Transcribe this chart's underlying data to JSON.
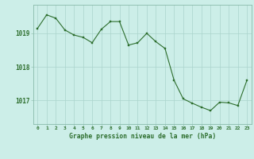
{
  "x": [
    0,
    1,
    2,
    3,
    4,
    5,
    6,
    7,
    8,
    9,
    10,
    11,
    12,
    13,
    14,
    15,
    16,
    17,
    18,
    19,
    20,
    21,
    22,
    23
  ],
  "y": [
    1019.15,
    1019.55,
    1019.45,
    1019.1,
    1018.95,
    1018.88,
    1018.72,
    1019.12,
    1019.35,
    1019.35,
    1018.65,
    1018.72,
    1019.0,
    1018.75,
    1018.55,
    1017.6,
    1017.05,
    1016.92,
    1016.8,
    1016.7,
    1016.95,
    1016.93,
    1016.85,
    1017.6
  ],
  "line_color": "#2d6e2d",
  "marker_color": "#2d6e2d",
  "bg_color": "#cceee8",
  "grid_color": "#aad4cc",
  "axis_label_color": "#2d6e2d",
  "xlabel": "Graphe pression niveau de la mer (hPa)",
  "yticks": [
    1017,
    1018,
    1019
  ],
  "ylim": [
    1016.3,
    1019.85
  ],
  "xlim": [
    -0.5,
    23.5
  ],
  "xtick_labels": [
    "0",
    "1",
    "2",
    "3",
    "4",
    "5",
    "6",
    "7",
    "8",
    "9",
    "10",
    "11",
    "12",
    "13",
    "14",
    "15",
    "16",
    "17",
    "18",
    "19",
    "20",
    "21",
    "22",
    "23"
  ]
}
